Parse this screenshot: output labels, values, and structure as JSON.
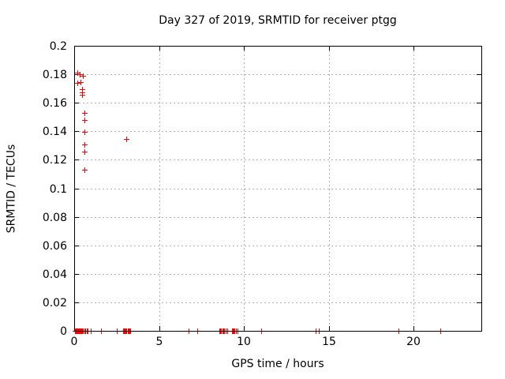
{
  "colors": {
    "background": "#ffffff",
    "axis": "#000000",
    "grid": "#b0b0b0",
    "marker": "#ff0000",
    "text": "#000000"
  },
  "chart_data": {
    "type": "scatter",
    "title": "Day 327 of 2019, SRMTID for receiver ptgg",
    "xlabel": "GPS time / hours",
    "ylabel": "SRMTID / TECUs",
    "xlim": [
      0,
      24
    ],
    "ylim": [
      0,
      0.2
    ],
    "xticks": [
      0,
      5,
      10,
      15,
      20
    ],
    "xtick_labels": [
      "0",
      "5",
      "10",
      "15",
      "20"
    ],
    "yticks": [
      0,
      0.02,
      0.04,
      0.06,
      0.08,
      0.1,
      0.12,
      0.14,
      0.16,
      0.18,
      0.2
    ],
    "ytick_labels": [
      "0",
      "0.02",
      "0.04",
      "0.06",
      "0.08",
      "0.1",
      "0.12",
      "0.14",
      "0.16",
      "0.18",
      "0.2"
    ],
    "grid": true,
    "grid_style": "dashed",
    "legend": "none",
    "marker": {
      "shape": "plus",
      "color": "#ff0000",
      "size": 7
    },
    "series": [
      {
        "name": "SRMTID",
        "points": [
          [
            0.17,
            0.181
          ],
          [
            0.33,
            0.18
          ],
          [
            0.51,
            0.179
          ],
          [
            0.17,
            0.1742
          ],
          [
            0.39,
            0.1745
          ],
          [
            0.48,
            0.1697
          ],
          [
            0.48,
            0.1675
          ],
          [
            0.48,
            0.1656
          ],
          [
            0.59,
            0.1527
          ],
          [
            0.59,
            0.1481
          ],
          [
            0.59,
            0.1398
          ],
          [
            3.07,
            0.1346
          ],
          [
            0.59,
            0.1306
          ],
          [
            0.59,
            0.1259
          ],
          [
            0.59,
            0.113
          ],
          [
            0.05,
            0
          ],
          [
            0.09,
            0
          ],
          [
            0.13,
            0
          ],
          [
            0.17,
            0
          ],
          [
            0.21,
            0
          ],
          [
            0.25,
            0
          ],
          [
            0.29,
            0
          ],
          [
            0.33,
            0
          ],
          [
            0.37,
            0
          ],
          [
            0.41,
            0
          ],
          [
            0.45,
            0
          ],
          [
            0.49,
            0
          ],
          [
            0.53,
            0
          ],
          [
            0.62,
            0
          ],
          [
            0.67,
            0
          ],
          [
            0.76,
            0
          ],
          [
            0.81,
            0
          ],
          [
            0.99,
            0
          ],
          [
            1.58,
            0
          ],
          [
            2.51,
            0
          ],
          [
            2.89,
            0
          ],
          [
            2.94,
            0
          ],
          [
            2.99,
            0
          ],
          [
            3.04,
            0
          ],
          [
            3.09,
            0
          ],
          [
            3.14,
            0
          ],
          [
            3.19,
            0
          ],
          [
            3.24,
            0
          ],
          [
            3.29,
            0
          ],
          [
            6.76,
            0
          ],
          [
            7.26,
            0
          ],
          [
            8.55,
            0
          ],
          [
            8.61,
            0
          ],
          [
            8.67,
            0
          ],
          [
            8.73,
            0
          ],
          [
            8.79,
            0
          ],
          [
            8.85,
            0
          ],
          [
            8.91,
            0
          ],
          [
            9.02,
            0
          ],
          [
            9.28,
            0
          ],
          [
            9.34,
            0
          ],
          [
            9.4,
            0
          ],
          [
            9.46,
            0
          ],
          [
            9.52,
            0
          ],
          [
            9.62,
            0
          ],
          [
            11.0,
            0
          ],
          [
            14.25,
            0
          ],
          [
            14.44,
            0
          ],
          [
            19.12,
            0
          ],
          [
            21.6,
            0
          ]
        ]
      }
    ]
  }
}
